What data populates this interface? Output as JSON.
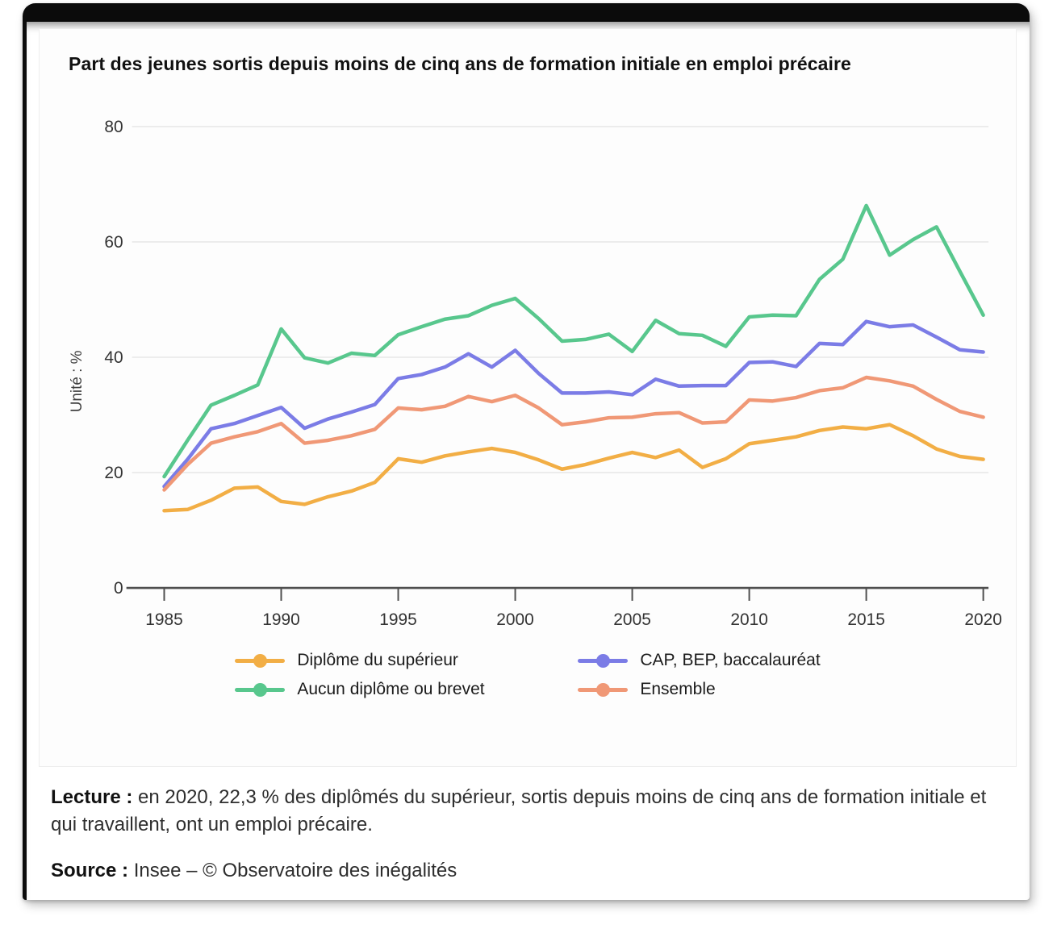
{
  "panel": {
    "title": "Part des jeunes sortis depuis moins de cinq ans de formation initiale en emploi précaire"
  },
  "chart_data": {
    "type": "line",
    "title": "Part des jeunes sortis depuis moins de cinq ans de formation initiale en emploi précaire",
    "unit_label": "Unité : %",
    "xlabel": "",
    "ylabel": "Unité : %",
    "ylim": [
      0,
      80
    ],
    "grid": true,
    "legend_position": "bottom",
    "x": [
      1985,
      1986,
      1987,
      1988,
      1989,
      1990,
      1991,
      1992,
      1993,
      1994,
      1995,
      1996,
      1997,
      1998,
      1999,
      2000,
      2001,
      2002,
      2003,
      2004,
      2005,
      2006,
      2007,
      2008,
      2009,
      2010,
      2011,
      2012,
      2013,
      2014,
      2015,
      2016,
      2017,
      2018,
      2019,
      2020
    ],
    "x_tick_labels": [
      "1985",
      "1990",
      "1995",
      "2000",
      "2005",
      "2010",
      "2015",
      "2020"
    ],
    "x_ticks": [
      1985,
      1990,
      1995,
      2000,
      2005,
      2010,
      2015,
      2020
    ],
    "y_ticks": [
      0,
      20,
      40,
      60,
      80
    ],
    "y_tick_labels": [
      "0",
      "20",
      "40",
      "60",
      "80"
    ],
    "series": [
      {
        "name": "Diplôme du supérieur",
        "color": "#F2AE45",
        "values": [
          13.4,
          13.6,
          15.2,
          17.3,
          17.5,
          15.0,
          14.5,
          15.8,
          16.8,
          18.3,
          22.4,
          21.8,
          22.9,
          23.6,
          24.2,
          23.5,
          22.2,
          20.6,
          21.4,
          22.5,
          23.5,
          22.6,
          23.9,
          20.9,
          22.4,
          25.0,
          25.6,
          26.2,
          27.3,
          27.9,
          27.6,
          28.3,
          26.4,
          24.1,
          22.8,
          22.3
        ]
      },
      {
        "name": "CAP, BEP, baccalauréat",
        "color": "#7B7CE6",
        "values": [
          17.6,
          22.3,
          27.6,
          28.5,
          29.9,
          31.3,
          27.7,
          29.3,
          30.5,
          31.8,
          36.3,
          37.0,
          38.3,
          40.6,
          38.3,
          41.2,
          37.2,
          33.8,
          33.8,
          34.0,
          33.5,
          36.2,
          35.0,
          35.1,
          35.1,
          39.1,
          39.2,
          38.4,
          42.4,
          42.2,
          46.2,
          45.3,
          45.6,
          43.5,
          41.3,
          40.9
        ]
      },
      {
        "name": "Aucun diplôme ou brevet",
        "color": "#58C78D",
        "values": [
          19.3,
          25.6,
          31.7,
          33.4,
          35.2,
          44.9,
          39.9,
          39.0,
          40.7,
          40.3,
          43.9,
          45.3,
          46.6,
          47.2,
          49.0,
          50.2,
          46.7,
          42.8,
          43.1,
          44.0,
          41.0,
          46.4,
          44.1,
          43.8,
          41.9,
          47.0,
          47.3,
          47.2,
          53.5,
          57.0,
          66.3,
          57.7,
          60.4,
          62.6,
          54.9,
          47.3
        ]
      },
      {
        "name": "Ensemble",
        "color": "#F09876",
        "values": [
          17.0,
          21.4,
          25.1,
          26.2,
          27.1,
          28.5,
          25.1,
          25.6,
          26.4,
          27.5,
          31.2,
          30.9,
          31.5,
          33.2,
          32.3,
          33.4,
          31.2,
          28.3,
          28.8,
          29.5,
          29.6,
          30.2,
          30.4,
          28.6,
          28.8,
          32.6,
          32.4,
          33.0,
          34.2,
          34.7,
          36.5,
          35.9,
          35.0,
          32.7,
          30.6,
          29.6
        ]
      }
    ],
    "style": {
      "grid_color": "#e8e8e8",
      "axis_color": "#4f4f4f",
      "tick_text_color": "#333333",
      "line_width": 4.5
    }
  },
  "notes": {
    "lecture_label": "Lecture :",
    "lecture_text": " en 2020, 22,3 % des diplômés du supérieur, sortis depuis moins de cinq ans de formation initiale et qui travaillent, ont un emploi précaire.",
    "source_label": "Source :",
    "source_text": " Insee – © Observatoire des inégalités"
  }
}
